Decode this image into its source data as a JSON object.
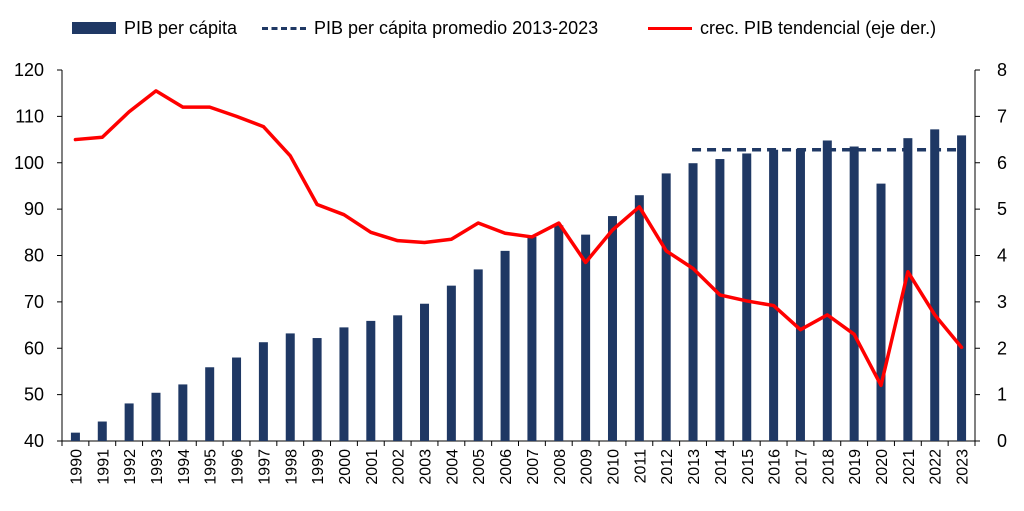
{
  "chart_data": {
    "type": "bar",
    "title": "",
    "xlabel": "",
    "ylabel": "",
    "categories": [
      "1990",
      "1991",
      "1992",
      "1993",
      "1994",
      "1995",
      "1996",
      "1997",
      "1998",
      "1999",
      "2000",
      "2001",
      "2002",
      "2003",
      "2004",
      "2005",
      "2006",
      "2007",
      "2008",
      "2009",
      "2010",
      "2011",
      "2012",
      "2013",
      "2014",
      "2015",
      "2016",
      "2017",
      "2018",
      "2019",
      "2020",
      "2021",
      "2022",
      "2023"
    ],
    "series": [
      {
        "name": "PIB per cápita",
        "type": "bar",
        "axis": "left",
        "color": "#1f3864",
        "values": [
          41.8,
          44.2,
          48.1,
          50.4,
          52.2,
          55.9,
          58.0,
          61.3,
          63.2,
          62.2,
          64.5,
          65.9,
          67.1,
          69.6,
          73.5,
          77.0,
          81.0,
          84.0,
          86.5,
          84.5,
          88.5,
          93.0,
          97.7,
          99.9,
          100.8,
          102.0,
          102.8,
          103.0,
          104.8,
          103.5,
          95.5,
          105.3,
          107.2,
          105.9
        ]
      },
      {
        "name": "PIB per cápita promedio 2013-2023",
        "type": "line-dashed",
        "axis": "left",
        "color": "#1f3864",
        "from": "2013",
        "to": "2023",
        "value": 102.8
      },
      {
        "name": "crec. PIB tendencial (eje der.)",
        "type": "line",
        "axis": "right",
        "color": "#ff0000",
        "values": [
          6.5,
          6.55,
          7.1,
          7.55,
          7.2,
          7.2,
          7.0,
          6.78,
          6.15,
          5.1,
          4.88,
          4.5,
          4.32,
          4.28,
          4.35,
          4.7,
          4.48,
          4.4,
          4.7,
          3.85,
          4.55,
          5.05,
          4.1,
          3.72,
          3.15,
          3.02,
          2.92,
          2.4,
          2.72,
          2.3,
          1.2,
          3.65,
          2.72,
          2.02
        ]
      }
    ],
    "y_left": {
      "min": 40,
      "max": 120,
      "ticks": [
        "40",
        "50",
        "60",
        "70",
        "80",
        "90",
        "100",
        "110",
        "120"
      ]
    },
    "y_right": {
      "min": 0,
      "max": 8,
      "ticks": [
        "0",
        "1",
        "2",
        "3",
        "4",
        "5",
        "6",
        "7",
        "8"
      ]
    },
    "grid": false,
    "legend_position": "top"
  }
}
